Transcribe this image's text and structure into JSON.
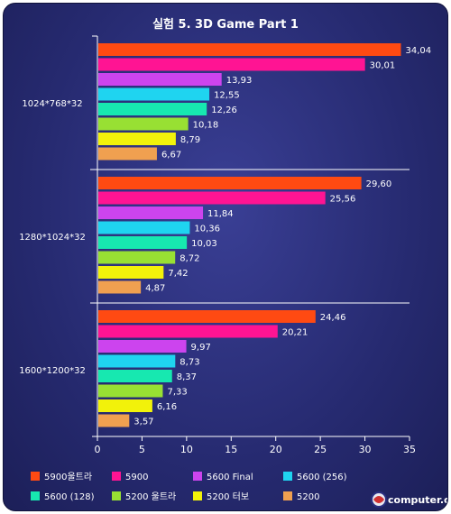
{
  "chart_data": {
    "type": "bar",
    "orientation": "horizontal",
    "title": "실험 5. 3D Game Part 1",
    "categories": [
      "1024*768*32",
      "1280*1024*32",
      "1600*1200*32"
    ],
    "series": [
      {
        "name": "5900울트라",
        "color": "#ff4a12",
        "values": [
          34.04,
          29.6,
          24.46
        ],
        "labels": [
          "34,04",
          "29,60",
          "24,46"
        ]
      },
      {
        "name": "5900",
        "color": "#ff1493",
        "values": [
          30.01,
          25.56,
          20.21
        ],
        "labels": [
          "30,01",
          "25,56",
          "20,21"
        ]
      },
      {
        "name": "5600 Final",
        "color": "#cc44ee",
        "values": [
          13.93,
          11.84,
          9.97
        ],
        "labels": [
          "13,93",
          "11,84",
          "9,97"
        ]
      },
      {
        "name": "5600 (256)",
        "color": "#1fd4f0",
        "values": [
          12.55,
          10.36,
          8.73
        ],
        "labels": [
          "12,55",
          "10,36",
          "8,73"
        ]
      },
      {
        "name": "5600 (128)",
        "color": "#17e8b0",
        "values": [
          12.26,
          10.03,
          8.37
        ],
        "labels": [
          "12,26",
          "10,03",
          "8,37"
        ]
      },
      {
        "name": "5200 울트라",
        "color": "#98e033",
        "values": [
          10.18,
          8.72,
          7.33
        ],
        "labels": [
          "10,18",
          "8,72",
          "7,33"
        ]
      },
      {
        "name": "5200 터보",
        "color": "#f2f20a",
        "values": [
          8.79,
          7.42,
          6.16
        ],
        "labels": [
          "8,79",
          "7,42",
          "6,16"
        ]
      },
      {
        "name": "5200",
        "color": "#f0a050",
        "values": [
          6.67,
          4.87,
          3.57
        ],
        "labels": [
          "6,67",
          "4,87",
          "3,57"
        ]
      }
    ],
    "xlim": [
      0,
      35
    ],
    "xticks": [
      0,
      5,
      10,
      15,
      20,
      25,
      30,
      35
    ],
    "grid": false,
    "legend_position": "bottom"
  },
  "logo": {
    "text": "computer.co.kr"
  }
}
